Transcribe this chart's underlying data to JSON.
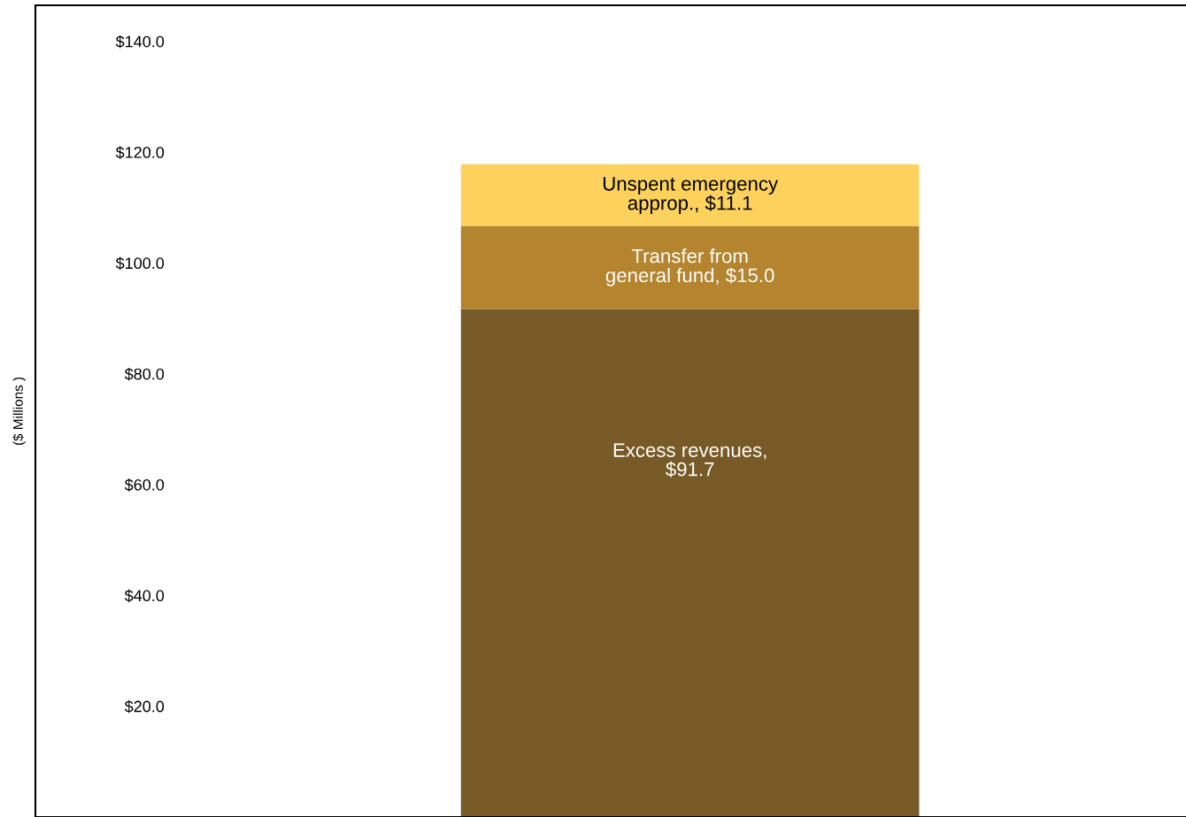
{
  "chart_data": {
    "type": "bar",
    "stacked": true,
    "ylabel": "($ Millions )",
    "categories": [
      null
    ],
    "series": [
      {
        "color": "#785a26",
        "values": [
          91.7
        ],
        "value_labels": [
          "Excess revenues,\n$91.7"
        ]
      },
      {
        "color": "#b4842e",
        "values": [
          15.0
        ],
        "value_labels": [
          "Transfer from\ngeneral fund, $15.0"
        ]
      },
      {
        "color": "#fcd25c",
        "values": [
          11.1
        ],
        "value_labels": [
          "Unspent emergency\napprop., $11.1"
        ]
      }
    ],
    "ylim": [
      0,
      146.5
    ],
    "yticks": [
      {
        "value": 20,
        "label": "$20.0"
      },
      {
        "value": 40,
        "label": "$40.0"
      },
      {
        "value": 60,
        "label": "$60.0"
      },
      {
        "value": 80,
        "label": "$80.0"
      },
      {
        "value": 100,
        "label": "$100.0"
      },
      {
        "value": 120,
        "label": "$120.0"
      },
      {
        "value": 140,
        "label": "$140.0"
      }
    ],
    "grid": false
  }
}
